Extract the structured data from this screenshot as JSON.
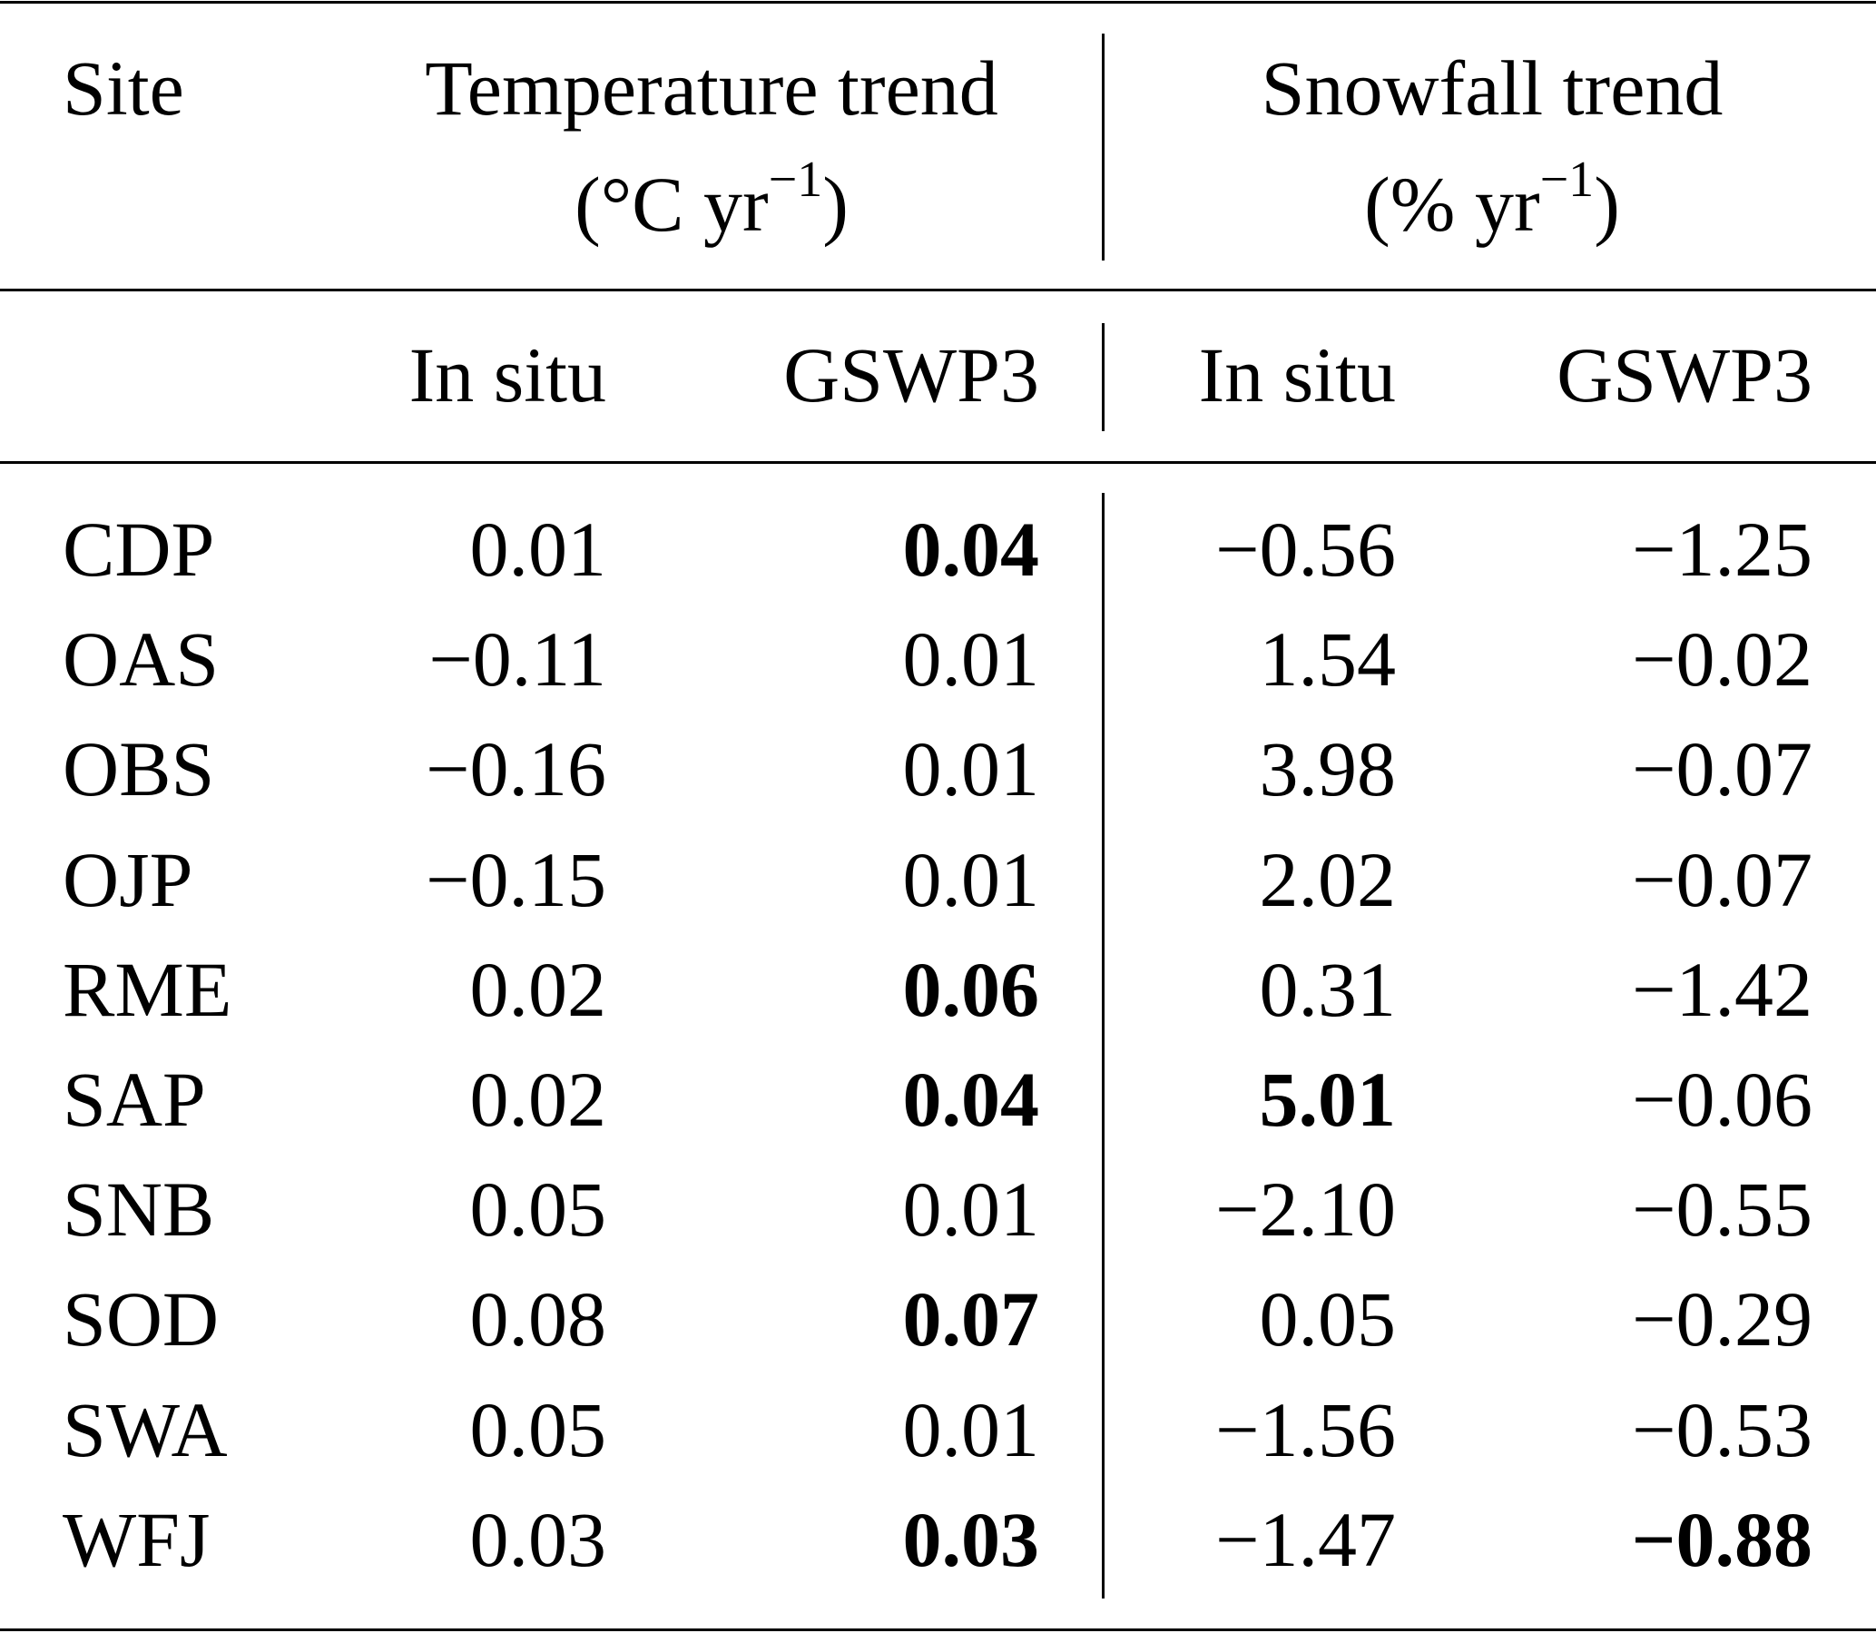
{
  "header": {
    "site": "Site",
    "temperature_title": "Temperature trend",
    "temperature_unit": "(°C yr",
    "snowfall_title": "Snowfall trend",
    "snowfall_unit": "(% yr",
    "unit_exponent": "−1",
    "unit_close": ")",
    "sub": [
      "In situ",
      "GSWP3",
      "In situ",
      "GSWP3"
    ]
  },
  "rows": [
    {
      "site": "CDP",
      "values": [
        "0.01",
        "0.04",
        "−0.56",
        "−1.25"
      ],
      "bold": [
        false,
        true,
        false,
        false
      ]
    },
    {
      "site": "OAS",
      "values": [
        "−0.11",
        "0.01",
        "1.54",
        "−0.02"
      ],
      "bold": [
        false,
        false,
        false,
        false
      ]
    },
    {
      "site": "OBS",
      "values": [
        "−0.16",
        "0.01",
        "3.98",
        "−0.07"
      ],
      "bold": [
        false,
        false,
        false,
        false
      ]
    },
    {
      "site": "OJP",
      "values": [
        "−0.15",
        "0.01",
        "2.02",
        "−0.07"
      ],
      "bold": [
        false,
        false,
        false,
        false
      ]
    },
    {
      "site": "RME",
      "values": [
        "0.02",
        "0.06",
        "0.31",
        "−1.42"
      ],
      "bold": [
        false,
        true,
        false,
        false
      ]
    },
    {
      "site": "SAP",
      "values": [
        "0.02",
        "0.04",
        "5.01",
        "−0.06"
      ],
      "bold": [
        false,
        true,
        true,
        false
      ]
    },
    {
      "site": "SNB",
      "values": [
        "0.05",
        "0.01",
        "−2.10",
        "−0.55"
      ],
      "bold": [
        false,
        false,
        false,
        false
      ]
    },
    {
      "site": "SOD",
      "values": [
        "0.08",
        "0.07",
        "0.05",
        "−0.29"
      ],
      "bold": [
        false,
        true,
        false,
        false
      ]
    },
    {
      "site": "SWA",
      "values": [
        "0.05",
        "0.01",
        "−1.56",
        "−0.53"
      ],
      "bold": [
        false,
        false,
        false,
        false
      ]
    },
    {
      "site": "WFJ",
      "values": [
        "0.03",
        "0.03",
        "−1.47",
        "−0.88"
      ],
      "bold": [
        false,
        true,
        false,
        true
      ]
    }
  ]
}
